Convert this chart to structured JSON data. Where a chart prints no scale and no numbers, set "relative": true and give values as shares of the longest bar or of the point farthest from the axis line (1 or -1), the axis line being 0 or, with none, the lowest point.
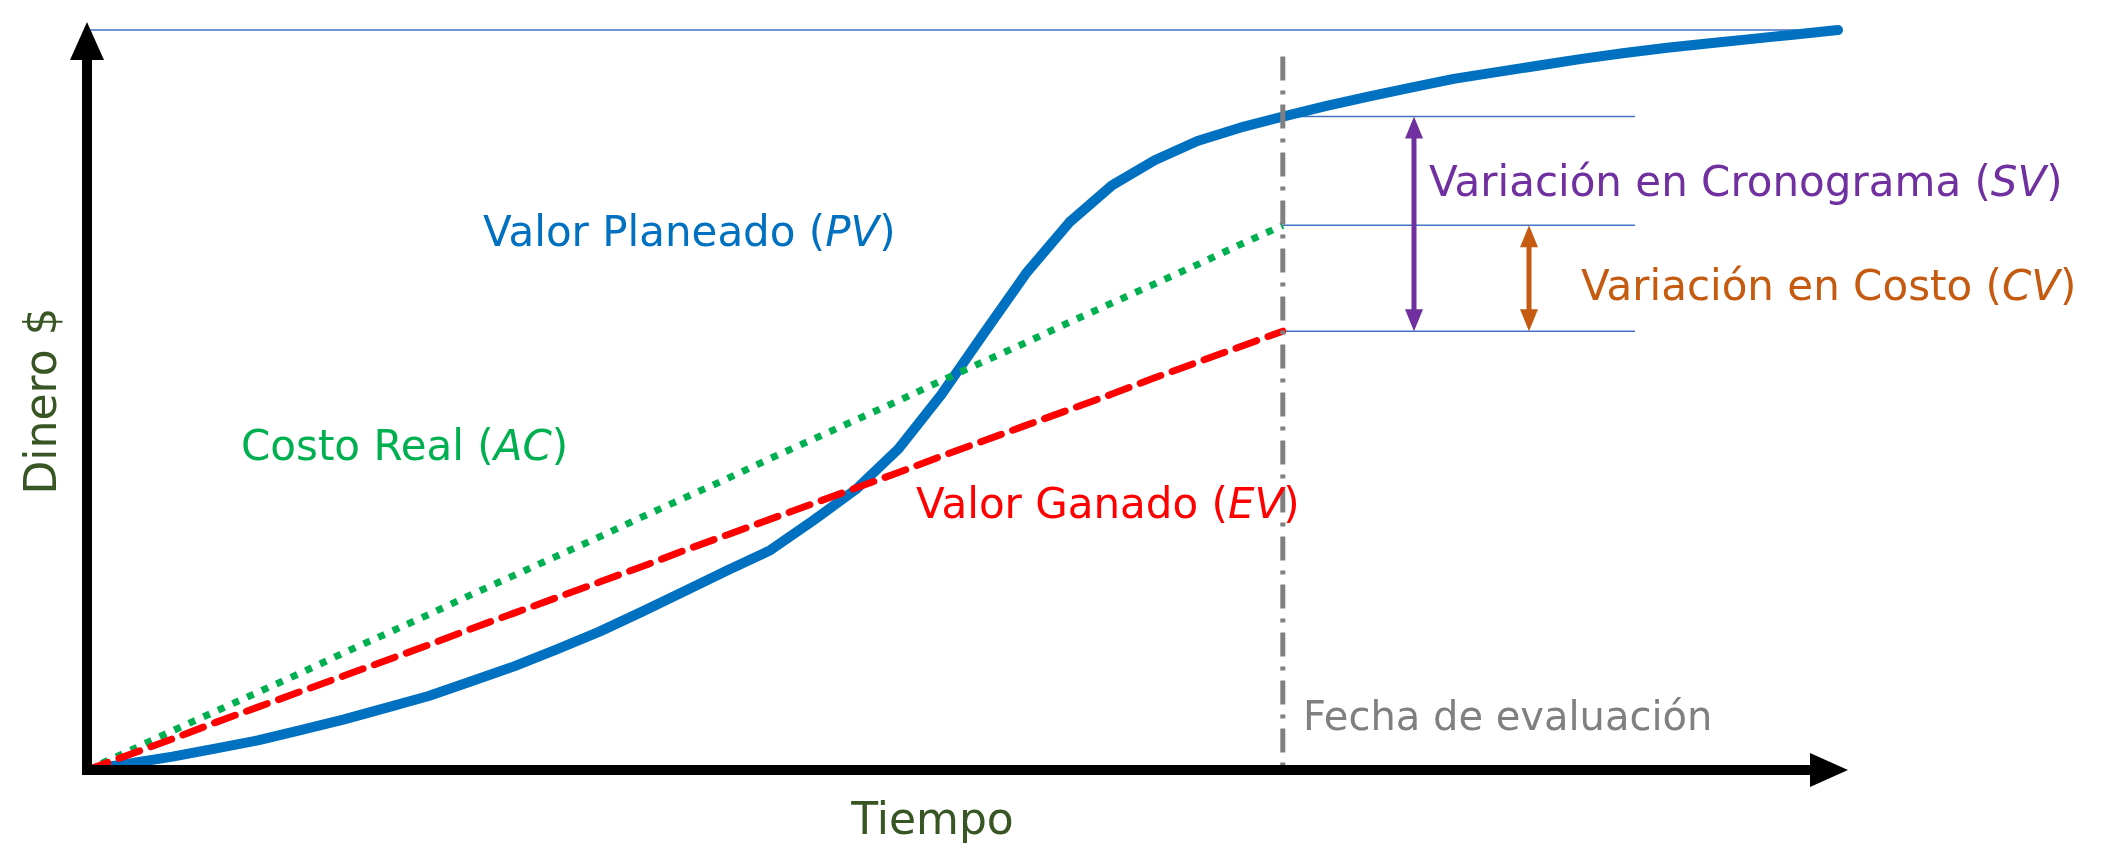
{
  "chart_data": {
    "type": "line",
    "relative": true,
    "xlabel": "Tiempo",
    "ylabel": "Dinero $",
    "categories": [
      null,
      null,
      null,
      null,
      null,
      null,
      null,
      null,
      null,
      null,
      null,
      null,
      null,
      null,
      null,
      null,
      null,
      null,
      null,
      null,
      null,
      null,
      null,
      null,
      null,
      null,
      null,
      null,
      null,
      null,
      null,
      null,
      null,
      null,
      null,
      null,
      null,
      null,
      null,
      null,
      null,
      null
    ],
    "series": [
      {
        "name": "Valor Planeado (PV)",
        "color": "#0070c0",
        "line_style": "solid",
        "values": [
          0,
          0.009,
          0.018,
          0.029,
          0.04,
          0.054,
          0.068,
          0.084,
          0.1,
          0.12,
          0.14,
          0.163,
          0.187,
          0.214,
          0.242,
          0.27,
          0.297,
          0.337,
          0.379,
          0.434,
          0.507,
          0.59,
          0.672,
          0.74,
          0.79,
          0.824,
          0.85,
          0.868,
          0.883,
          0.897,
          0.91,
          0.922,
          0.934,
          0.943,
          0.952,
          0.961,
          0.969,
          0.976,
          0.982,
          0.988,
          0.994,
          1
        ]
      },
      {
        "name": "Costo Real (AC)",
        "color": "#00b050",
        "line_style": "dotted",
        "values": [
          0,
          0.026,
          0.053,
          0.079,
          0.105,
          0.131,
          0.158,
          0.184,
          0.21,
          0.237,
          0.263,
          0.289,
          0.315,
          0.342,
          0.368,
          0.394,
          0.421,
          0.447,
          0.473,
          0.499,
          0.526,
          0.552,
          0.578,
          0.605,
          0.631,
          0.657,
          0.683,
          0.71,
          0.736,
          null,
          null,
          null,
          null,
          null,
          null,
          null,
          null,
          null,
          null,
          null,
          null,
          null
        ]
      },
      {
        "name": "Valor Ganado (EV)",
        "color": "#ff0000",
        "line_style": "dashed",
        "values": [
          0,
          0.021,
          0.042,
          0.064,
          0.085,
          0.106,
          0.127,
          0.148,
          0.169,
          0.191,
          0.212,
          0.233,
          0.254,
          0.275,
          0.297,
          0.318,
          0.339,
          0.36,
          0.381,
          0.402,
          0.424,
          0.445,
          0.466,
          0.487,
          0.508,
          0.53,
          0.551,
          0.572,
          0.593,
          null,
          null,
          null,
          null,
          null,
          null,
          null,
          null,
          null,
          null,
          null,
          null,
          null
        ]
      }
    ],
    "annotations": [
      "Variación en Cronograma (SV)",
      "Variación en Costo (CV)",
      "Fecha de evaluación"
    ]
  }
}
